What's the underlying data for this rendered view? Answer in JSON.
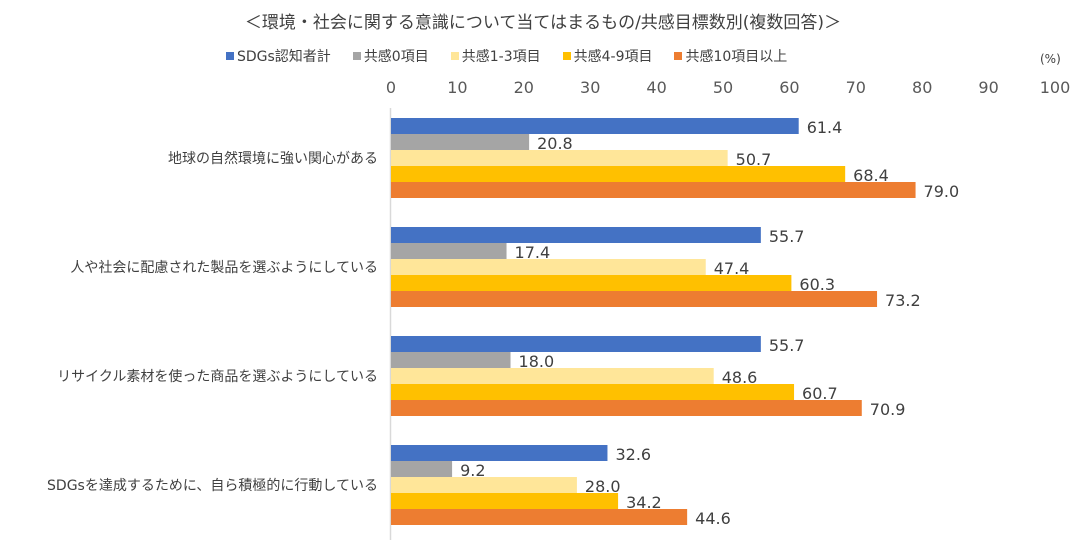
{
  "chart_data": {
    "type": "bar",
    "orientation": "horizontal",
    "title": "＜環境・社会に関する意識について当てはまるもの/共感目標数別(複数回答)＞",
    "unit_label": "(%)",
    "xlabel": "",
    "ylabel": "",
    "xlim": [
      0,
      100
    ],
    "x_ticks": [
      0,
      10,
      20,
      30,
      40,
      50,
      60,
      70,
      80,
      90,
      100
    ],
    "x_axis_position": "top",
    "grid": false,
    "legend_position": "top",
    "categories": [
      "地球の自然環境に強い関心がある",
      "人や社会に配慮された製品を選ぶようにしている",
      "リサイクル素材を使った商品を選ぶようにしている",
      "SDGsを達成するために、自ら積極的に行動している"
    ],
    "series": [
      {
        "name": "SDGs認知者計",
        "color": "#4472C4",
        "values": [
          61.4,
          55.7,
          55.7,
          32.6
        ]
      },
      {
        "name": "共感0項目",
        "color": "#A5A5A5",
        "values": [
          20.8,
          17.4,
          18.0,
          9.2
        ]
      },
      {
        "name": "共感1-3項目",
        "color": "#FFE699",
        "values": [
          50.7,
          47.4,
          48.6,
          28.0
        ]
      },
      {
        "name": "共感4-9項目",
        "color": "#FFC000",
        "values": [
          68.4,
          60.3,
          60.7,
          34.2
        ]
      },
      {
        "name": "共感10項目以上",
        "color": "#ED7D31",
        "values": [
          79.0,
          73.2,
          70.9,
          44.6
        ]
      }
    ]
  }
}
